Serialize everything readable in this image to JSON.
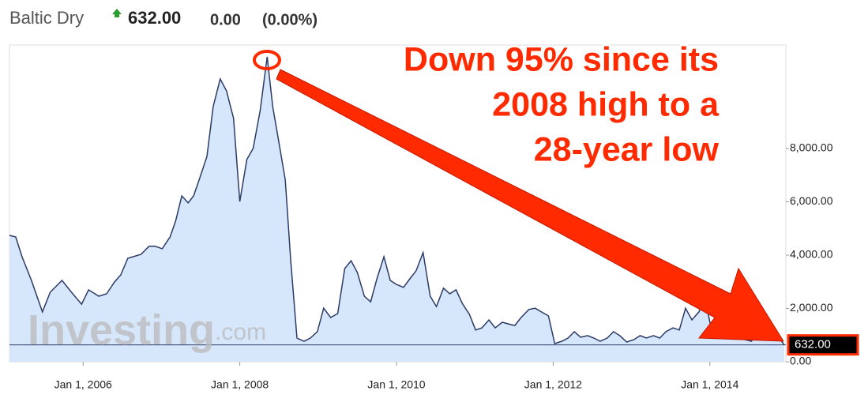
{
  "chart_data": {
    "type": "area",
    "title": "Baltic Dry",
    "price": {
      "value": 632,
      "label": "632.00"
    },
    "change": {
      "value": 0,
      "label": "0.00"
    },
    "change_pct": {
      "value": 0,
      "label": "(0.00%)"
    },
    "annotation": [
      "Down 95% since its",
      "2008 high to a",
      "28-year low"
    ],
    "watermark": [
      "Investing",
      ".com"
    ],
    "color": "#2c3a66",
    "fill": "#d6e6fb",
    "x": [
      2005.06,
      2005.14,
      2005.22,
      2005.34,
      2005.48,
      2005.58,
      2005.73,
      2005.85,
      2005.98,
      2006.07,
      2006.2,
      2006.3,
      2006.4,
      2006.48,
      2006.57,
      2006.74,
      2006.84,
      2006.92,
      2007.01,
      2007.11,
      2007.18,
      2007.26,
      2007.34,
      2007.41,
      2007.49,
      2007.58,
      2007.66,
      2007.75,
      2007.83,
      2007.92,
      2008.0,
      2008.09,
      2008.17,
      2008.26,
      2008.35,
      2008.42,
      2008.49,
      2008.58,
      2008.65,
      2008.73,
      2008.82,
      2008.9,
      2008.99,
      2009.07,
      2009.16,
      2009.25,
      2009.34,
      2009.42,
      2009.5,
      2009.59,
      2009.67,
      2009.75,
      2009.84,
      2009.92,
      2010.0,
      2010.09,
      2010.17,
      2010.25,
      2010.34,
      2010.43,
      2010.51,
      2010.6,
      2010.68,
      2010.76,
      2010.84,
      2010.93,
      2011.01,
      2011.09,
      2011.18,
      2011.26,
      2011.35,
      2011.43,
      2011.51,
      2011.59,
      2011.69,
      2011.77,
      2011.85,
      2011.94,
      2012.02,
      2012.11,
      2012.19,
      2012.27,
      2012.35,
      2012.44,
      2012.52,
      2012.6,
      2012.69,
      2012.77,
      2012.85,
      2012.94,
      2013.03,
      2013.11,
      2013.19,
      2013.28,
      2013.36,
      2013.44,
      2013.53,
      2013.61,
      2013.69,
      2013.77,
      2013.86,
      2013.94,
      2014.02,
      2014.11,
      2014.2,
      2014.28,
      2014.37,
      2014.45,
      2014.53,
      2014.62,
      2014.7,
      2014.78,
      2014.86,
      2014.95
    ],
    "values": [
      4740,
      4680,
      3940,
      3050,
      1870,
      2610,
      3050,
      2610,
      2160,
      2700,
      2460,
      2550,
      2990,
      3260,
      3880,
      4030,
      4330,
      4330,
      4240,
      4680,
      5270,
      6220,
      5960,
      6220,
      6900,
      7700,
      9570,
      10610,
      10160,
      9130,
      6010,
      7590,
      8000,
      9420,
      11440,
      9570,
      8390,
      6820,
      3790,
      890,
      770,
      890,
      1130,
      2010,
      1660,
      1810,
      3500,
      3790,
      3350,
      2460,
      2250,
      3110,
      3940,
      3050,
      2900,
      2790,
      3110,
      3410,
      4090,
      2460,
      2070,
      2760,
      2550,
      2700,
      2190,
      1780,
      1190,
      1270,
      1570,
      1270,
      1480,
      1420,
      1360,
      1660,
      1960,
      2010,
      1870,
      1720,
      680,
      770,
      890,
      1130,
      920,
      980,
      890,
      770,
      890,
      1130,
      980,
      740,
      830,
      980,
      890,
      980,
      890,
      1130,
      1270,
      1190,
      2010,
      1570,
      1870,
      2370,
      1190,
      1420,
      1270,
      980,
      890,
      830,
      770,
      1130,
      1270,
      1190,
      980,
      632
    ],
    "xlim": [
      2005.06,
      2014.97
    ],
    "xticks": [
      {
        "value": 2006,
        "label": "Jan 1, 2006"
      },
      {
        "value": 2008,
        "label": "Jan 1, 2008"
      },
      {
        "value": 2010,
        "label": "Jan 1, 2010"
      },
      {
        "value": 2012,
        "label": "Jan 1, 2012"
      },
      {
        "value": 2014,
        "label": "Jan 1, 2014"
      }
    ],
    "ylim": [
      0,
      11880
    ],
    "yticks": [
      {
        "value": 0,
        "label": "0.00"
      },
      {
        "value": 2000,
        "label": "2,000.00"
      },
      {
        "value": 4000,
        "label": "4,000.00"
      },
      {
        "value": 6000,
        "label": "6,000.00"
      },
      {
        "value": 8000,
        "label": "8,000.00"
      }
    ],
    "grid": false
  }
}
